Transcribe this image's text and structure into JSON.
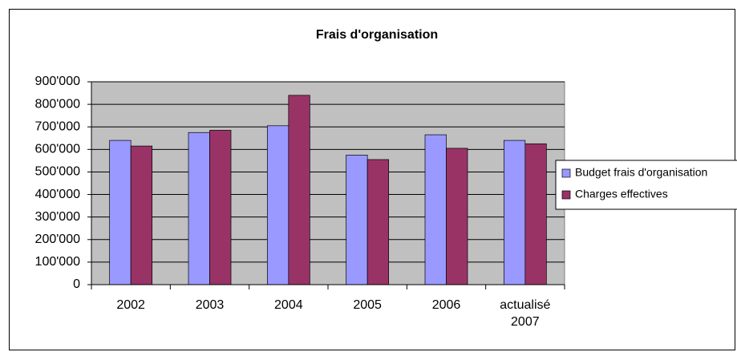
{
  "chart_data": {
    "type": "bar",
    "title": "Frais d'organisation",
    "categories": [
      "2002",
      "2003",
      "2004",
      "2005",
      "2006",
      "actualisé 2007"
    ],
    "series": [
      {
        "name": "Budget frais d'organisation",
        "color": "#9999ff",
        "values": [
          640000,
          675000,
          705000,
          575000,
          665000,
          640000
        ]
      },
      {
        "name": "Charges effectives",
        "color": "#993366",
        "values": [
          615000,
          685000,
          840000,
          555000,
          605000,
          625000
        ]
      }
    ],
    "ylim": [
      0,
      900000
    ],
    "yticks": [
      0,
      {
        "value": 100000,
        "label": "100'000"
      },
      {
        "value": 200000,
        "label": "200'000"
      },
      {
        "value": 300000,
        "label": "300'000"
      },
      {
        "value": 400000,
        "label": "400'000"
      },
      {
        "value": 500000,
        "label": "500'000"
      },
      {
        "value": 600000,
        "label": "600'000"
      },
      {
        "value": 700000,
        "label": "700'000"
      },
      {
        "value": 800000,
        "label": "800'000"
      },
      {
        "value": 900000,
        "label": "900'000"
      }
    ],
    "grid": true,
    "legend": "right"
  }
}
